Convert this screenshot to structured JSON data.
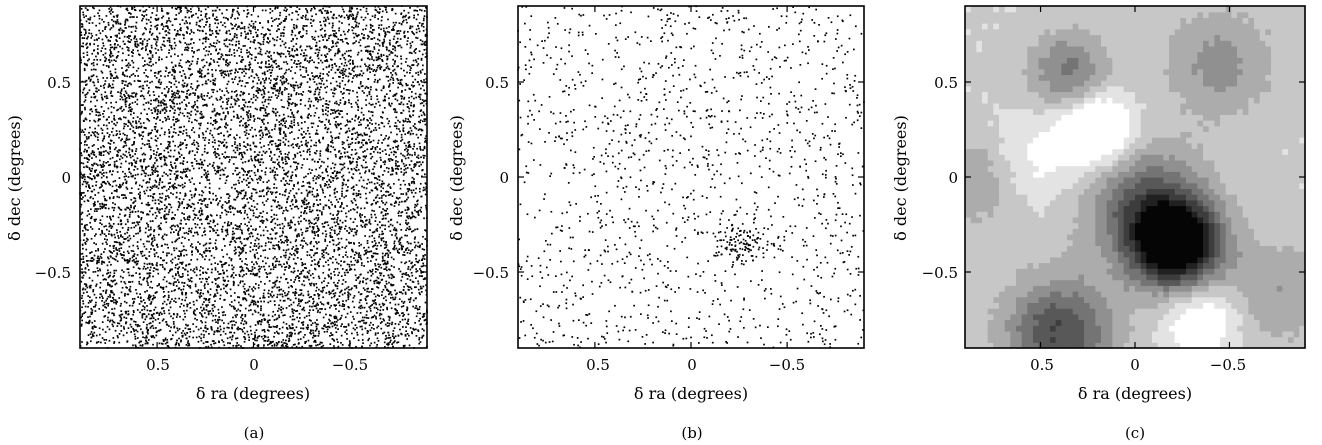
{
  "chart_data": [
    {
      "panel": "a",
      "type": "scatter",
      "caption": "(a)",
      "xlabel": "δ ra (degrees)",
      "ylabel": "δ dec (degrees)",
      "xlim": [
        0.9,
        -0.9
      ],
      "ylim": [
        -0.9,
        0.9
      ],
      "x_reversed": true,
      "xticks": [
        0.5,
        0,
        -0.5
      ],
      "xtick_labels": [
        "0.5",
        "0",
        "−0.5"
      ],
      "yticks": [
        0.5,
        0,
        -0.5
      ],
      "ytick_labels": [
        "0.5",
        "0",
        "−0.5"
      ],
      "point_count": 9000,
      "grid": false
    },
    {
      "panel": "b",
      "type": "scatter",
      "caption": "(b)",
      "xlabel": "δ ra (degrees)",
      "ylabel": "δ dec (degrees)",
      "xlim": [
        0.9,
        -0.9
      ],
      "ylim": [
        -0.9,
        0.9
      ],
      "x_reversed": true,
      "xticks": [
        0.5,
        0,
        -0.5
      ],
      "xtick_labels": [
        "0.5",
        "0",
        "−0.5"
      ],
      "yticks": [
        0.5,
        0,
        -0.5
      ],
      "ytick_labels": [
        "0.5",
        "0",
        "−0.5"
      ],
      "point_count": 1500,
      "cluster_center": [
        -0.25,
        -0.35
      ],
      "grid": false
    },
    {
      "panel": "c",
      "type": "heatmap",
      "caption": "(c)",
      "xlabel": "δ ra (degrees)",
      "ylabel": "δ dec (degrees)",
      "xlim": [
        0.9,
        -0.9
      ],
      "ylim": [
        -0.9,
        0.9
      ],
      "x_reversed": true,
      "xticks": [
        0.5,
        0,
        -0.5
      ],
      "xtick_labels": [
        "0.5",
        "0",
        "−0.5"
      ],
      "yticks": [
        0.5,
        0,
        -0.5
      ],
      "ytick_labels": [
        "0.5",
        "0",
        "−0.5"
      ],
      "colormap": "grayscale",
      "color_levels": 10,
      "density_peaks": [
        {
          "x": -0.22,
          "y": -0.35,
          "amplitude": 1.0,
          "sigma": 0.16
        },
        {
          "x": -0.05,
          "y": -0.15,
          "amplitude": 0.45,
          "sigma": 0.22
        },
        {
          "x": 0.4,
          "y": -0.82,
          "amplitude": 0.55,
          "sigma": 0.2
        },
        {
          "x": 0.35,
          "y": 0.55,
          "amplitude": 0.35,
          "sigma": 0.15
        },
        {
          "x": -0.45,
          "y": 0.6,
          "amplitude": 0.25,
          "sigma": 0.2
        },
        {
          "x": 0.82,
          "y": 0.0,
          "amplitude": 0.22,
          "sigma": 0.18
        },
        {
          "x": -0.75,
          "y": -0.6,
          "amplitude": 0.2,
          "sigma": 0.2
        }
      ],
      "density_voids": [
        {
          "x": 0.2,
          "y": 0.25,
          "amplitude": 0.5,
          "sigma": 0.13
        },
        {
          "x": -0.35,
          "y": -0.75,
          "amplitude": 0.3,
          "sigma": 0.14
        },
        {
          "x": 0.55,
          "y": 0.1,
          "amplitude": 0.2,
          "sigma": 0.18
        }
      ],
      "grid": false
    }
  ]
}
